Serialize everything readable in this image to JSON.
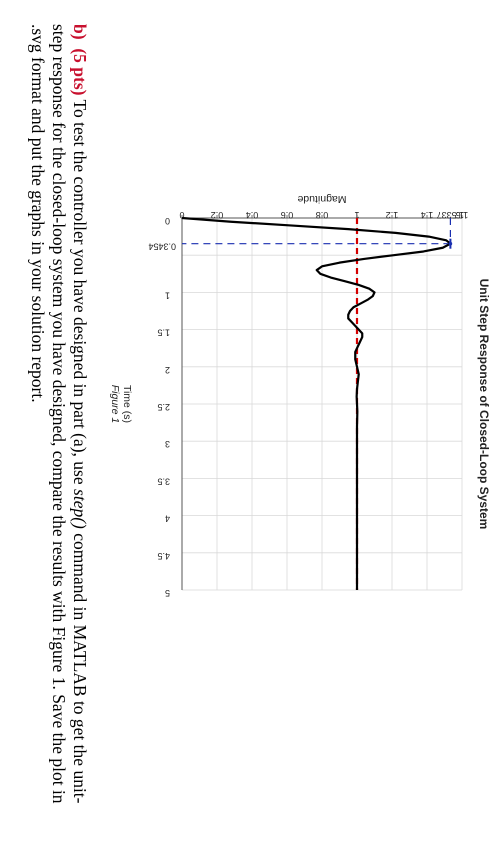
{
  "colors": {
    "response": "#000000",
    "reference": "#d40000",
    "peak_marker": "#1a2fb0",
    "grid": "#d9d9d9",
    "part_label": "#c8102e"
  },
  "chart_data": {
    "type": "line",
    "title": "Unit Step Response of Closed-Loop System",
    "xlabel": "Time (s)",
    "ylabel": "Magnitude",
    "caption": "Figure 1",
    "xlim": [
      0,
      5
    ],
    "ylim": [
      0,
      1.6
    ],
    "grid": true,
    "x_ticks": [
      "0",
      "0.3454",
      "1",
      "1.5",
      "2",
      "2.5",
      "3",
      "3.5",
      "4",
      "4.5",
      "5"
    ],
    "x_tick_values": [
      0,
      0.3454,
      1,
      1.5,
      2,
      2.5,
      3,
      3.5,
      4,
      4.5,
      5
    ],
    "y_ticks": [
      "0",
      "0.2",
      "0.4",
      "0.6",
      "0.8",
      "1",
      "1.2",
      "1.4",
      "1.5337",
      "1.6"
    ],
    "y_tick_values": [
      0,
      0.2,
      0.4,
      0.6,
      0.8,
      1,
      1.2,
      1.4,
      1.5337,
      1.6
    ],
    "peak": {
      "x": 0.3454,
      "y": 1.5337
    },
    "reference_level": 1.0,
    "series": [
      {
        "x": [
          0,
          0.05,
          0.1,
          0.15,
          0.2,
          0.25,
          0.3,
          0.3454,
          0.4,
          0.45,
          0.5,
          0.55,
          0.6,
          0.65,
          0.7,
          0.75,
          0.8,
          0.85,
          0.9,
          0.95,
          1.0,
          1.05,
          1.1,
          1.15,
          1.2,
          1.25,
          1.3,
          1.35,
          1.4,
          1.45,
          1.5,
          1.55,
          1.6,
          1.65,
          1.7,
          1.75,
          1.8,
          1.9,
          2.0,
          2.1,
          2.2,
          2.3,
          2.4,
          2.5,
          2.6,
          2.8,
          3.0,
          3.5,
          4.0,
          4.5,
          5.0
        ],
        "y": [
          0,
          0.28,
          0.62,
          0.95,
          1.22,
          1.41,
          1.51,
          1.5337,
          1.49,
          1.38,
          1.21,
          1.04,
          0.9,
          0.8,
          0.77,
          0.79,
          0.85,
          0.93,
          1.01,
          1.07,
          1.1,
          1.09,
          1.06,
          1.02,
          0.98,
          0.96,
          0.95,
          0.95,
          0.97,
          0.99,
          1.01,
          1.03,
          1.03,
          1.02,
          1.01,
          1.0,
          0.99,
          0.99,
          1.0,
          1.01,
          1.005,
          1.0,
          0.998,
          1.0,
          1.002,
          1.0,
          1.0,
          1.0,
          1.0,
          1.0,
          1.0
        ]
      }
    ]
  },
  "question": {
    "part_label": "b)",
    "points": "(5 pts)",
    "text_1": " To test the controller you have designed in part (a), use ",
    "command": "step()",
    "text_2": " command in MATLAB to get the unit-step response for the closed-loop system you have designed, compare the results with Figure 1. Save the plot in .svg format and put the graphs in your solution report."
  }
}
